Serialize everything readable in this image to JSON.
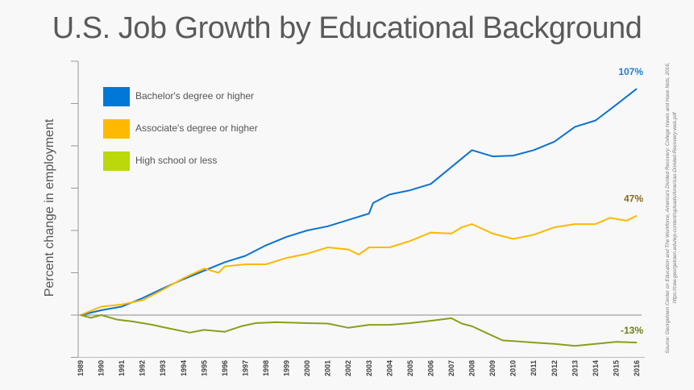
{
  "title": "U.S. Job Growth by Educational Background",
  "source": {
    "line1": "Source: Georgetown Center on Education and The Workforce, America's Divided Recovery: College Haves and Have Nots, 2016,",
    "line2": "https://cew.georgetown.edu/wp-content/uploads/Americas-Divided-Recovery-web.pdf"
  },
  "chart_data": {
    "type": "line",
    "title": "U.S. Job Growth by Educational Background",
    "xlabel": "",
    "ylabel": "Percent change in employment",
    "xlim": [
      1989,
      2016
    ],
    "ylim": [
      -20,
      120
    ],
    "yticks": [
      -20,
      0,
      20,
      40,
      60,
      80,
      100,
      120
    ],
    "ytick_labels_shown": false,
    "xtick_labels": [
      "1989",
      "1990",
      "1991",
      "1992",
      "1993",
      "1994",
      "1995",
      "1996",
      "1997",
      "1998",
      "1999",
      "2000",
      "2001",
      "2002",
      "2003",
      "2004",
      "2005",
      "2006",
      "2007",
      "2008",
      "2009",
      "2010",
      "2011",
      "2012",
      "2013",
      "2014",
      "2015",
      "2016"
    ],
    "grid": false,
    "legend": "top-left",
    "series": [
      {
        "name": "Bachelor's  degree or higher",
        "color": "#0a74d0",
        "legend_color": "#0078d7",
        "end_label": "107%",
        "end_label_color": "#1a7fd6",
        "x": [
          1989,
          1990,
          1991,
          1992,
          1993,
          1994,
          1995,
          1996,
          1997,
          1998,
          1999,
          2000,
          2001,
          2002,
          2003,
          2003.2,
          2004,
          2005,
          2006,
          2007,
          2008,
          2009,
          2010,
          2011,
          2012,
          2013,
          2014,
          2015,
          2016
        ],
        "y": [
          0,
          2.3,
          4,
          8,
          12.6,
          17,
          21,
          25,
          28,
          33,
          37,
          40,
          42,
          45,
          48,
          53,
          57,
          59,
          62,
          70,
          78,
          75,
          75.4,
          78,
          82,
          89,
          92,
          99.4,
          107
        ]
      },
      {
        "name": "Associate's degree or higher",
        "color": "#fbb900",
        "legend_color": "#ffb900",
        "end_label": "47%",
        "end_label_color": "#8a6a14",
        "x": [
          1989,
          1990,
          1991,
          1992,
          1993,
          1994,
          1995,
          1995.7,
          1996,
          1997,
          1998,
          1999,
          2000,
          2001,
          2002,
          2002.5,
          2003,
          2004,
          2005,
          2006,
          2007,
          2007.5,
          2008,
          2009,
          2010,
          2011,
          2012,
          2013,
          2014,
          2014.7,
          2015.5,
          2016
        ],
        "y": [
          0,
          4,
          5,
          7,
          12,
          17.5,
          22,
          20,
          23,
          24,
          24,
          27,
          29,
          32,
          31,
          28.6,
          32,
          32,
          35,
          39,
          38.5,
          41.5,
          43,
          38.5,
          36,
          38,
          41.5,
          43,
          43,
          46,
          44.6,
          47
        ]
      },
      {
        "name": "High school or less",
        "color": "#86a01c",
        "legend_color": "#bad80a",
        "end_label": "-13%",
        "end_label_color": "#6b7d12",
        "x": [
          1989,
          1989.5,
          1990,
          1990.8,
          1991.5,
          1992.5,
          1993,
          1994.3,
          1995,
          1996,
          1996.8,
          1997.5,
          1998.5,
          2000,
          2001,
          2002,
          2003,
          2004,
          2005,
          2006,
          2007,
          2007.5,
          2008,
          2009,
          2009.5,
          2010,
          2011,
          2012,
          2013,
          2014,
          2015,
          2016
        ],
        "y": [
          0,
          -1.3,
          0,
          -2.2,
          -3,
          -4.6,
          -5.7,
          -8.3,
          -7,
          -7.9,
          -5.3,
          -3.8,
          -3.4,
          -3.8,
          -4,
          -6,
          -4.6,
          -4.6,
          -3.8,
          -2.7,
          -1.5,
          -4,
          -5.3,
          -9.8,
          -12,
          -12.3,
          -13,
          -13.6,
          -14.6,
          -13.6,
          -12.7,
          -13
        ]
      }
    ]
  }
}
